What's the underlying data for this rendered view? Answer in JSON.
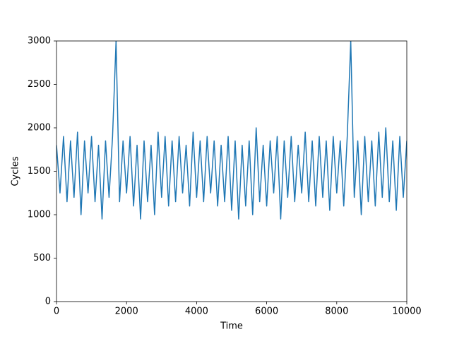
{
  "chart_data": {
    "type": "line",
    "x_label": "Time",
    "y_label": "Cycles",
    "x": [
      0,
      100,
      200,
      300,
      400,
      500,
      600,
      700,
      800,
      900,
      1000,
      1100,
      1200,
      1300,
      1400,
      1500,
      1600,
      1700,
      1800,
      1900,
      2000,
      2100,
      2200,
      2300,
      2400,
      2500,
      2600,
      2700,
      2800,
      2900,
      3000,
      3100,
      3200,
      3300,
      3400,
      3500,
      3600,
      3700,
      3800,
      3900,
      4000,
      4100,
      4200,
      4300,
      4400,
      4500,
      4600,
      4700,
      4800,
      4900,
      5000,
      5100,
      5200,
      5300,
      5400,
      5500,
      5600,
      5700,
      5800,
      5900,
      6000,
      6100,
      6200,
      6300,
      6400,
      6500,
      6600,
      6700,
      6800,
      6900,
      7000,
      7100,
      7200,
      7300,
      7400,
      7500,
      7600,
      7700,
      7800,
      7900,
      8000,
      8100,
      8200,
      8300,
      8400,
      8500,
      8600,
      8700,
      8800,
      8900,
      9000,
      9100,
      9200,
      9300,
      9400,
      9500,
      9600,
      9700,
      9800,
      9900,
      10000
    ],
    "series": [
      {
        "color": "#1f77b4",
        "values": [
          1800,
          1250,
          1900,
          1150,
          1850,
          1200,
          1950,
          1000,
          1850,
          1250,
          1900,
          1150,
          1800,
          950,
          1850,
          1200,
          1900,
          3000,
          1150,
          1850,
          1250,
          1900,
          1100,
          1800,
          950,
          1850,
          1150,
          1800,
          1000,
          1950,
          1200,
          1900,
          1100,
          1850,
          1150,
          1900,
          1250,
          1800,
          1100,
          1950,
          1200,
          1850,
          1150,
          1900,
          1250,
          1850,
          1100,
          1800,
          1150,
          1900,
          1050,
          1850,
          950,
          1800,
          1100,
          1850,
          1000,
          2000,
          1150,
          1800,
          1100,
          1850,
          1250,
          1900,
          950,
          1850,
          1200,
          1900,
          1150,
          1800,
          1250,
          1950,
          1150,
          1850,
          1100,
          1900,
          1200,
          1850,
          1050,
          1900,
          1250,
          1850,
          1100,
          1900,
          3000,
          1200,
          1850,
          1000,
          1900,
          1150,
          1850,
          1100,
          1950,
          1200,
          2000,
          1150,
          1850,
          1050,
          1900,
          1200,
          1850
        ]
      }
    ],
    "xlim": [
      0,
      10000
    ],
    "ylim": [
      0,
      3000
    ],
    "xticks": [
      0,
      2000,
      4000,
      6000,
      8000,
      10000
    ],
    "yticks": [
      0,
      500,
      1000,
      1500,
      2000,
      2500,
      3000
    ],
    "grid": false
  }
}
